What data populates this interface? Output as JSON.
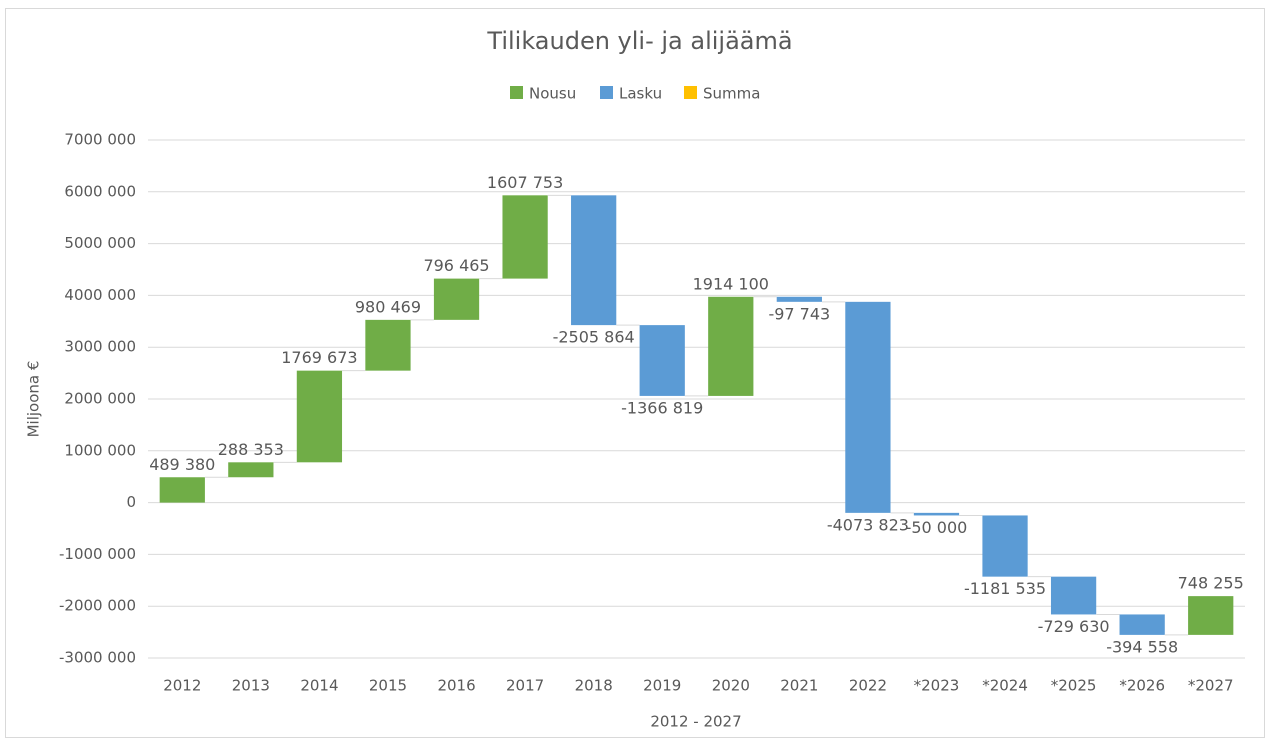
{
  "chart_data": {
    "type": "waterfall",
    "title": "Tilikauden yli- ja alijäämä",
    "y_label": "Miljoona €",
    "x_label": "2012 - 2027",
    "legend": [
      {
        "name": "Nousu",
        "color": "#70ad47"
      },
      {
        "name": "Lasku",
        "color": "#5b9bd5"
      },
      {
        "name": "Summa",
        "color": "#ffc000"
      }
    ],
    "categories": [
      "2012",
      "2013",
      "2014",
      "2015",
      "2016",
      "2017",
      "2018",
      "2019",
      "2020",
      "2021",
      "2022",
      "*2023",
      "*2024",
      "*2025",
      "*2026",
      "*2027"
    ],
    "values": [
      489380,
      288353,
      1769673,
      980469,
      796465,
      1607753,
      -2505864,
      -1366819,
      1914100,
      -97743,
      -4073823,
      -50000,
      -1181535,
      -729630,
      -394558,
      748255
    ],
    "value_labels": [
      "489 380",
      "288 353",
      "1769 673",
      "980 469",
      "796 465",
      "1607 753",
      "-2505 864",
      "-1366 819",
      "1914 100",
      "-97 743",
      "-4073 823",
      "-50 000",
      "-1181 535",
      "-729 630",
      "-394 558",
      "748 255"
    ],
    "ylim": [
      -3000000,
      7000000
    ],
    "yticks": [
      {
        "value": -3000000,
        "label": "-3000 000"
      },
      {
        "value": -2000000,
        "label": "-2000 000"
      },
      {
        "value": -1000000,
        "label": "-1000 000"
      },
      0,
      {
        "value": 1000000,
        "label": "1000 000"
      },
      {
        "value": 2000000,
        "label": "2000 000"
      },
      {
        "value": 3000000,
        "label": "3000 000"
      },
      {
        "value": 4000000,
        "label": "4000 000"
      },
      {
        "value": 5000000,
        "label": "5000 000"
      },
      {
        "value": 6000000,
        "label": "6000 000"
      },
      {
        "value": 7000000,
        "label": "7000 000"
      }
    ],
    "grid": true
  }
}
